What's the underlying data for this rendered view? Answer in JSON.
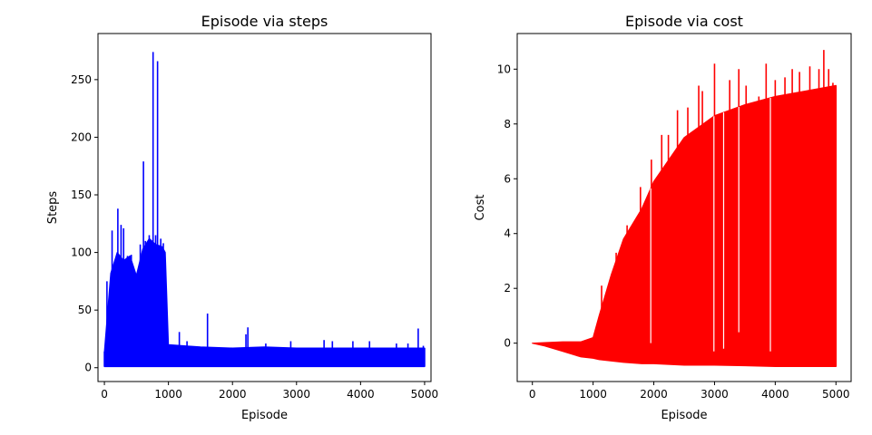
{
  "figure": {
    "background": "#ffffff"
  },
  "chart_data": [
    {
      "type": "line",
      "title": "Episode via steps",
      "xlabel": "Episode",
      "ylabel": "Steps",
      "xlim": [
        -100,
        5100
      ],
      "ylim": [
        -12,
        290
      ],
      "xticks": [
        0,
        1000,
        2000,
        3000,
        4000,
        5000
      ],
      "yticks": [
        0,
        50,
        100,
        150,
        200,
        250
      ],
      "grid": false,
      "series": [
        {
          "color": "#0000ff",
          "band_x": [
            0,
            100,
            200,
            300,
            400,
            500,
            600,
            700,
            800,
            900,
            950,
            1000,
            1500,
            2000,
            2500,
            3000,
            3500,
            4000,
            4500,
            5000
          ],
          "band_low": [
            1,
            1,
            1,
            1,
            1,
            1,
            1,
            1,
            1,
            1,
            1,
            1,
            1,
            1,
            1,
            1,
            1,
            1,
            1,
            1
          ],
          "band_high": [
            14,
            82,
            100,
            93,
            97,
            80,
            103,
            112,
            107,
            105,
            100,
            20,
            18,
            17,
            18,
            17,
            17,
            17,
            17,
            17
          ],
          "spikes": [
            {
              "x": 0,
              "y": 14
            },
            {
              "x": 40,
              "y": 75
            },
            {
              "x": 120,
              "y": 119
            },
            {
              "x": 210,
              "y": 138
            },
            {
              "x": 260,
              "y": 124
            },
            {
              "x": 300,
              "y": 121
            },
            {
              "x": 360,
              "y": 97
            },
            {
              "x": 420,
              "y": 98
            },
            {
              "x": 560,
              "y": 107
            },
            {
              "x": 610,
              "y": 179
            },
            {
              "x": 640,
              "y": 110
            },
            {
              "x": 700,
              "y": 115
            },
            {
              "x": 760,
              "y": 274
            },
            {
              "x": 800,
              "y": 115
            },
            {
              "x": 830,
              "y": 266
            },
            {
              "x": 880,
              "y": 112
            },
            {
              "x": 920,
              "y": 108
            },
            {
              "x": 1170,
              "y": 31
            },
            {
              "x": 1290,
              "y": 23
            },
            {
              "x": 1610,
              "y": 47
            },
            {
              "x": 2210,
              "y": 29
            },
            {
              "x": 2240,
              "y": 35
            },
            {
              "x": 2520,
              "y": 21
            },
            {
              "x": 2910,
              "y": 23
            },
            {
              "x": 3430,
              "y": 24
            },
            {
              "x": 3560,
              "y": 23
            },
            {
              "x": 3880,
              "y": 23
            },
            {
              "x": 4140,
              "y": 23
            },
            {
              "x": 4560,
              "y": 21
            },
            {
              "x": 4740,
              "y": 21
            },
            {
              "x": 4900,
              "y": 34
            },
            {
              "x": 4980,
              "y": 19
            }
          ]
        }
      ]
    },
    {
      "type": "line",
      "title": "Episode via cost",
      "xlabel": "Episode",
      "ylabel": "Cost",
      "xlim": [
        -250,
        5250
      ],
      "ylim": [
        -1.4,
        11.3
      ],
      "xticks": [
        0,
        1000,
        2000,
        3000,
        4000,
        5000
      ],
      "yticks": [
        0,
        2,
        4,
        6,
        8,
        10
      ],
      "grid": false,
      "series": [
        {
          "color": "#ff0000",
          "band_x": [
            0,
            200,
            500,
            800,
            1000,
            1100,
            1300,
            1500,
            1800,
            2000,
            2500,
            3000,
            3500,
            4000,
            4500,
            5000
          ],
          "band_low": [
            0,
            -0.1,
            -0.3,
            -0.5,
            -0.55,
            -0.6,
            -0.65,
            -0.7,
            -0.75,
            -0.75,
            -0.8,
            -0.8,
            -0.82,
            -0.85,
            -0.85,
            -0.85
          ],
          "band_high": [
            0,
            0.02,
            0.05,
            0.05,
            0.2,
            1.0,
            2.5,
            3.8,
            4.9,
            5.9,
            7.5,
            8.3,
            8.7,
            9.0,
            9.2,
            9.4
          ],
          "spikes": [
            {
              "x": 1140,
              "y": 2.1
            },
            {
              "x": 1380,
              "y": 3.3
            },
            {
              "x": 1560,
              "y": 4.3
            },
            {
              "x": 1780,
              "y": 5.7
            },
            {
              "x": 1960,
              "y": 6.7
            },
            {
              "x": 2130,
              "y": 7.6
            },
            {
              "x": 2240,
              "y": 7.6
            },
            {
              "x": 2390,
              "y": 8.5
            },
            {
              "x": 2560,
              "y": 8.6
            },
            {
              "x": 2740,
              "y": 9.4
            },
            {
              "x": 2800,
              "y": 9.2
            },
            {
              "x": 3000,
              "y": 10.2
            },
            {
              "x": 3250,
              "y": 9.6
            },
            {
              "x": 3400,
              "y": 10.0
            },
            {
              "x": 3520,
              "y": 9.4
            },
            {
              "x": 3730,
              "y": 9.0
            },
            {
              "x": 3850,
              "y": 10.2
            },
            {
              "x": 4000,
              "y": 9.6
            },
            {
              "x": 4160,
              "y": 9.7
            },
            {
              "x": 4280,
              "y": 10.0
            },
            {
              "x": 4400,
              "y": 9.9
            },
            {
              "x": 4570,
              "y": 10.1
            },
            {
              "x": 4720,
              "y": 10.0
            },
            {
              "x": 4800,
              "y": 10.7
            },
            {
              "x": 4880,
              "y": 10.0
            },
            {
              "x": 4950,
              "y": 9.5
            }
          ],
          "dips": [
            {
              "x": 1950,
              "y": 0.0
            },
            {
              "x": 2990,
              "y": -0.3
            },
            {
              "x": 3150,
              "y": -0.2
            },
            {
              "x": 3400,
              "y": 0.4
            },
            {
              "x": 3920,
              "y": -0.3
            }
          ]
        }
      ]
    }
  ]
}
